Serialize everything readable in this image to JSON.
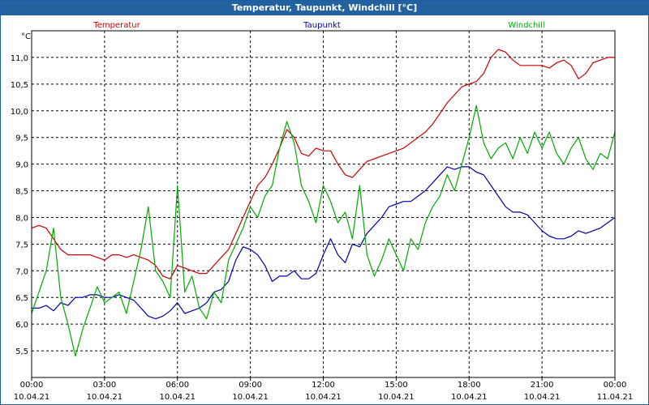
{
  "window": {
    "title": "Temperatur, Taupunkt, Windchill [°C]"
  },
  "chart_data": {
    "type": "line",
    "title": "Temperatur, Taupunkt, Windchill [°C]",
    "ylabel": "°C",
    "ylim": [
      5.0,
      11.5
    ],
    "xlim": [
      0,
      24
    ],
    "yticks": [
      5.5,
      6.0,
      6.5,
      7.0,
      7.5,
      8.0,
      8.5,
      9.0,
      9.5,
      10.0,
      10.5,
      11.0
    ],
    "ytick_labels": [
      "5,5",
      "6,0",
      "6,5",
      "7,0",
      "7,5",
      "8,0",
      "8,5",
      "9,0",
      "9,5",
      "10,0",
      "10,5",
      "11,0"
    ],
    "xticks": [
      {
        "pos": 0,
        "time": "00:00",
        "date": "10.04.21"
      },
      {
        "pos": 3,
        "time": "03:00",
        "date": "10.04.21"
      },
      {
        "pos": 6,
        "time": "06:00",
        "date": "10.04.21"
      },
      {
        "pos": 9,
        "time": "09:00",
        "date": "10.04.21"
      },
      {
        "pos": 12,
        "time": "12:00",
        "date": "10.04.21"
      },
      {
        "pos": 15,
        "time": "15:00",
        "date": "10.04.21"
      },
      {
        "pos": 18,
        "time": "18:00",
        "date": "10.04.21"
      },
      {
        "pos": 21,
        "time": "21:00",
        "date": "10.04.21"
      },
      {
        "pos": 24,
        "time": "00:00",
        "date": "11.04.21"
      }
    ],
    "grid": true,
    "series": [
      {
        "name": "Temperatur",
        "color": "#cc0000",
        "x": [
          0,
          0.3,
          0.6,
          0.9,
          1.2,
          1.5,
          1.8,
          2.1,
          2.4,
          2.7,
          3.0,
          3.3,
          3.6,
          3.9,
          4.2,
          4.5,
          4.8,
          5.1,
          5.4,
          5.7,
          6.0,
          6.3,
          6.6,
          6.9,
          7.2,
          7.5,
          7.8,
          8.1,
          8.4,
          8.7,
          9.0,
          9.3,
          9.6,
          9.9,
          10.2,
          10.5,
          10.8,
          11.1,
          11.4,
          11.7,
          12.0,
          12.3,
          12.6,
          12.9,
          13.2,
          13.5,
          13.8,
          14.1,
          14.4,
          14.7,
          15.0,
          15.3,
          15.6,
          15.9,
          16.2,
          16.5,
          16.8,
          17.1,
          17.4,
          17.7,
          18.0,
          18.3,
          18.6,
          18.9,
          19.2,
          19.5,
          19.8,
          20.1,
          20.4,
          20.7,
          21.0,
          21.3,
          21.6,
          21.9,
          22.2,
          22.5,
          22.8,
          23.1,
          23.4,
          23.7,
          24.0
        ],
        "values": [
          7.8,
          7.85,
          7.8,
          7.6,
          7.4,
          7.3,
          7.3,
          7.3,
          7.3,
          7.25,
          7.2,
          7.3,
          7.3,
          7.25,
          7.3,
          7.25,
          7.2,
          7.1,
          6.9,
          6.85,
          7.1,
          7.05,
          7.0,
          6.95,
          6.95,
          7.1,
          7.25,
          7.4,
          7.7,
          8.0,
          8.3,
          8.6,
          8.75,
          9.0,
          9.3,
          9.65,
          9.5,
          9.2,
          9.15,
          9.3,
          9.25,
          9.25,
          9.0,
          8.8,
          8.75,
          8.9,
          9.05,
          9.1,
          9.15,
          9.2,
          9.25,
          9.3,
          9.4,
          9.5,
          9.6,
          9.75,
          9.95,
          10.15,
          10.3,
          10.45,
          10.5,
          10.55,
          10.7,
          11.0,
          11.15,
          11.1,
          10.95,
          10.85,
          10.85,
          10.85,
          10.85,
          10.8,
          10.9,
          10.95,
          10.85,
          10.6,
          10.7,
          10.9,
          10.95,
          11.0,
          11.0
        ]
      },
      {
        "name": "Taupunkt",
        "color": "#0000aa",
        "x": [
          0,
          0.3,
          0.6,
          0.9,
          1.2,
          1.5,
          1.8,
          2.1,
          2.4,
          2.7,
          3.0,
          3.3,
          3.6,
          3.9,
          4.2,
          4.5,
          4.8,
          5.1,
          5.4,
          5.7,
          6.0,
          6.3,
          6.6,
          6.9,
          7.2,
          7.5,
          7.8,
          8.1,
          8.4,
          8.7,
          9.0,
          9.3,
          9.6,
          9.9,
          10.2,
          10.5,
          10.8,
          11.1,
          11.4,
          11.7,
          12.0,
          12.3,
          12.6,
          12.9,
          13.2,
          13.5,
          13.8,
          14.1,
          14.4,
          14.7,
          15.0,
          15.3,
          15.6,
          15.9,
          16.2,
          16.5,
          16.8,
          17.1,
          17.4,
          17.7,
          18.0,
          18.3,
          18.6,
          18.9,
          19.2,
          19.5,
          19.8,
          20.1,
          20.4,
          20.7,
          21.0,
          21.3,
          21.6,
          21.9,
          22.2,
          22.5,
          22.8,
          23.1,
          23.4,
          23.7,
          24.0
        ],
        "values": [
          6.3,
          6.3,
          6.35,
          6.25,
          6.4,
          6.35,
          6.5,
          6.5,
          6.55,
          6.55,
          6.5,
          6.5,
          6.55,
          6.5,
          6.45,
          6.3,
          6.15,
          6.1,
          6.15,
          6.25,
          6.4,
          6.2,
          6.25,
          6.3,
          6.4,
          6.6,
          6.65,
          6.8,
          7.2,
          7.45,
          7.4,
          7.3,
          7.1,
          6.8,
          6.9,
          6.9,
          7.0,
          6.85,
          6.85,
          6.95,
          7.3,
          7.6,
          7.3,
          7.15,
          7.5,
          7.45,
          7.7,
          7.85,
          8.0,
          8.2,
          8.25,
          8.3,
          8.3,
          8.4,
          8.5,
          8.65,
          8.8,
          8.95,
          8.9,
          8.95,
          8.95,
          8.85,
          8.8,
          8.6,
          8.4,
          8.2,
          8.1,
          8.1,
          8.05,
          7.9,
          7.75,
          7.65,
          7.6,
          7.6,
          7.65,
          7.75,
          7.7,
          7.75,
          7.8,
          7.9,
          8.0
        ]
      },
      {
        "name": "Windchill",
        "color": "#00aa00",
        "x": [
          0,
          0.3,
          0.6,
          0.9,
          1.2,
          1.5,
          1.8,
          2.1,
          2.4,
          2.7,
          3.0,
          3.3,
          3.6,
          3.9,
          4.2,
          4.5,
          4.8,
          5.1,
          5.4,
          5.7,
          6.0,
          6.3,
          6.6,
          6.9,
          7.2,
          7.5,
          7.8,
          8.1,
          8.4,
          8.7,
          9.0,
          9.3,
          9.6,
          9.9,
          10.2,
          10.5,
          10.8,
          11.1,
          11.4,
          11.7,
          12.0,
          12.3,
          12.6,
          12.9,
          13.2,
          13.5,
          13.8,
          14.1,
          14.4,
          14.7,
          15.0,
          15.3,
          15.6,
          15.9,
          16.2,
          16.5,
          16.8,
          17.1,
          17.4,
          17.7,
          18.0,
          18.3,
          18.6,
          18.9,
          19.2,
          19.5,
          19.8,
          20.1,
          20.4,
          20.7,
          21.0,
          21.3,
          21.6,
          21.9,
          22.2,
          22.5,
          22.8,
          23.1,
          23.4,
          23.7,
          24.0
        ],
        "values": [
          6.2,
          6.6,
          7.0,
          7.8,
          6.5,
          6.0,
          5.4,
          5.9,
          6.3,
          6.7,
          6.4,
          6.5,
          6.6,
          6.2,
          6.8,
          7.4,
          8.2,
          7.0,
          6.8,
          6.5,
          8.6,
          6.6,
          6.9,
          6.3,
          6.1,
          6.6,
          6.4,
          7.2,
          7.5,
          7.8,
          8.2,
          8.0,
          8.4,
          8.6,
          9.3,
          9.8,
          9.4,
          8.6,
          8.3,
          7.9,
          8.6,
          8.3,
          7.9,
          8.1,
          7.6,
          8.6,
          7.3,
          6.9,
          7.2,
          7.6,
          7.3,
          7.0,
          7.6,
          7.4,
          7.9,
          8.2,
          8.4,
          8.8,
          8.5,
          9.0,
          9.5,
          10.1,
          9.4,
          9.1,
          9.3,
          9.4,
          9.1,
          9.5,
          9.2,
          9.6,
          9.3,
          9.6,
          9.2,
          9.0,
          9.3,
          9.5,
          9.1,
          8.9,
          9.2,
          9.1,
          9.6
        ]
      }
    ]
  }
}
